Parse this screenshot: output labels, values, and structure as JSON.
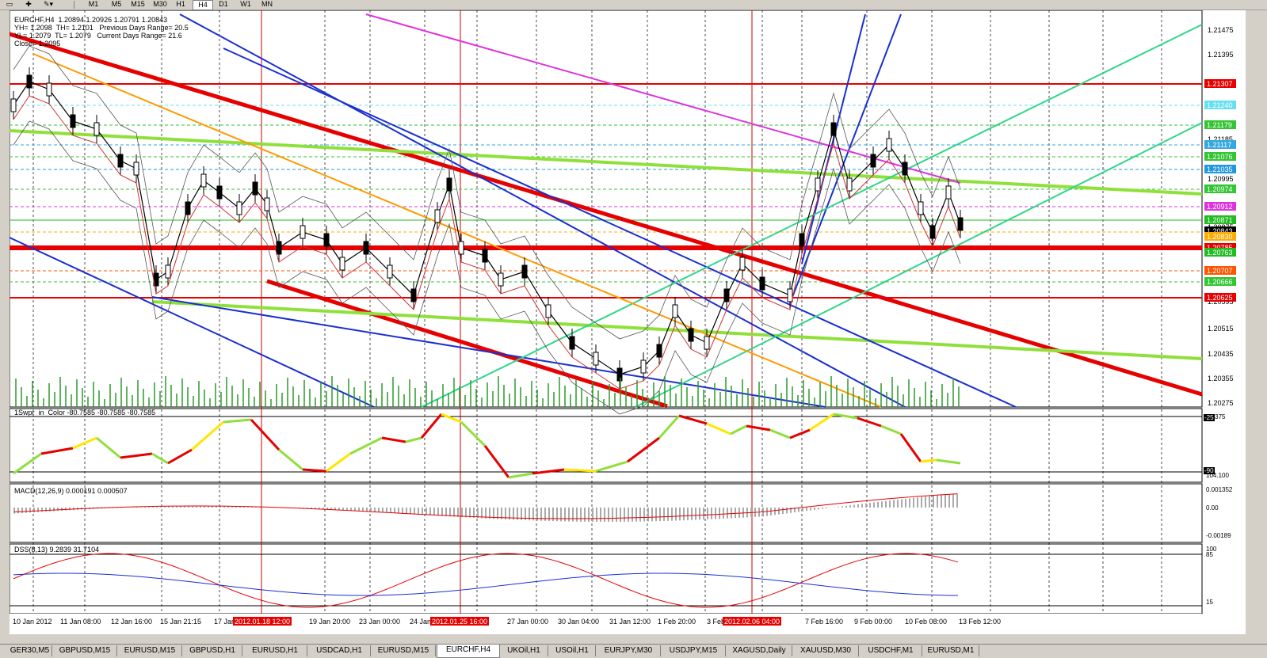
{
  "toolbar": {
    "timeframes": [
      "M1",
      "M5",
      "M15",
      "M30",
      "H1",
      "H4",
      "D1",
      "W1",
      "MN"
    ],
    "active_timeframe": "H4"
  },
  "chart": {
    "header": "EURCHF,H4  1.20894 1.20926 1.20791 1.20843",
    "info_lines": [
      "YH= 1.2098  TH= 1.2101   Previous Days Range= 20.5",
      "YL= 1.2079  TL= 1.2079   Current Days Range= 21.6",
      "Close= 1.2095"
    ],
    "price_ticks": [
      "1.21475",
      "1.21395",
      "1.21255",
      "1.21185",
      "1.20995",
      "1.20875",
      "1.20595",
      "1.20515",
      "1.20435",
      "1.20355",
      "1.20275"
    ],
    "price_labels": [
      {
        "text": "1.21307",
        "color": "#e60000"
      },
      {
        "text": "1.21240",
        "color": "#66e0f0"
      },
      {
        "text": "1.21179",
        "color": "#33c533"
      },
      {
        "text": "1.21117",
        "color": "#33a8e0"
      },
      {
        "text": "1.21076",
        "color": "#33c533"
      },
      {
        "text": "1.21035",
        "color": "#2299dd"
      },
      {
        "text": "1.20974",
        "color": "#33c533"
      },
      {
        "text": "1.20912",
        "color": "#dd33dd"
      },
      {
        "text": "1.20871",
        "color": "#22bb22"
      },
      {
        "text": "1.20843",
        "color": "#000000"
      },
      {
        "text": "1.20830",
        "color": "#ffaa00"
      },
      {
        "text": "1.20785",
        "color": "#e60000"
      },
      {
        "text": "1.20763",
        "color": "#22bb22"
      },
      {
        "text": "1.20707",
        "color": "#ff5500"
      },
      {
        "text": "1.20666",
        "color": "#33c533"
      },
      {
        "text": "1.20625",
        "color": "#e60000"
      }
    ],
    "time_labels": [
      "10 Jan 2012",
      "11 Jan 08:00",
      "12 Jan 16:00",
      "15 Jan 21:15",
      "17 Jan",
      "19 Jan 20:00",
      "23 Jan 00:00",
      "24 Jan",
      "27 Jan 00:00",
      "30 Jan 04:00",
      "31 Jan 12:00",
      "1 Feb 20:00",
      "3 Feb",
      "7 Feb 16:00",
      "9 Feb 00:00",
      "10 Feb 08:00",
      "13 Feb 12:00"
    ],
    "time_highlights": [
      "2012.01.18 12:00",
      "2012.01.25 16:00",
      "2012.02.06 04:00"
    ]
  },
  "wpr": {
    "title": "1Swpr_in_Color -80.7585 -80.7585 -80.7585",
    "scale": [
      "4.4375",
      "104.100"
    ],
    "levels": [
      "-25",
      "-90"
    ]
  },
  "macd": {
    "title": "MACD(12,26,9) 0.000191 0.000507",
    "scale": [
      "0.001352",
      "0.00",
      "-0.00189"
    ]
  },
  "dss": {
    "title": "DSS(8,13) 9.2839 31.7104",
    "scale": [
      "100",
      "85",
      "15"
    ]
  },
  "tabs": [
    "GER30,M5",
    "GBPUSD,M15",
    "EURUSD,M15",
    "GBPUSD,H1",
    "EURUSD,H1",
    "USDCAD,H1",
    "EURUSD,M15",
    "EURCHF,H4",
    "UKOil,H1",
    "USOil,H1",
    "EURJPY,M30",
    "USDJPY,M15",
    "XAGUSD,Daily",
    "XAUUSD,M30",
    "USDCHF,M1",
    "EURUSD,M1"
  ],
  "active_tab": "EURCHF,H4"
}
